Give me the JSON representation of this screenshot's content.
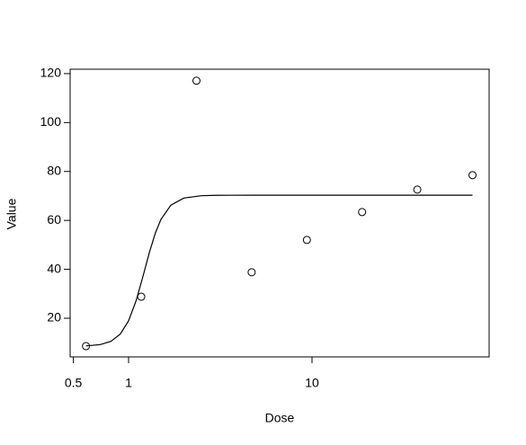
{
  "chart_data": {
    "type": "scatter",
    "x_label": "Dose",
    "y_label": "Value",
    "xlog": true,
    "points": {
      "x": [
        0.5859375,
        1.171875,
        2.34375,
        4.6875,
        9.375,
        18.75,
        37.5,
        75
      ],
      "y": [
        8.6,
        28.8,
        117.1,
        38.8,
        52.0,
        63.4,
        72.6,
        78.5
      ]
    },
    "curve": {
      "x": [
        0.586,
        0.7,
        0.8,
        0.9,
        1.0,
        1.1,
        1.2,
        1.3,
        1.4,
        1.5,
        1.7,
        2.0,
        2.5,
        3,
        5,
        10,
        20,
        40,
        75
      ],
      "y": [
        8.67,
        9.22,
        10.54,
        13.48,
        18.97,
        27.28,
        37.36,
        47.08,
        54.88,
        60.37,
        66.24,
        69.14,
        70.1,
        70.27,
        70.3,
        70.3,
        70.3,
        70.3,
        70.3
      ]
    },
    "color": "#000000",
    "xlim": [
      0.48,
      92.4
    ],
    "ylim": [
      4.2,
      121.8
    ],
    "xticks": [
      0.5,
      1,
      10
    ],
    "yticks": [
      20,
      40,
      60,
      80,
      100,
      120
    ]
  }
}
